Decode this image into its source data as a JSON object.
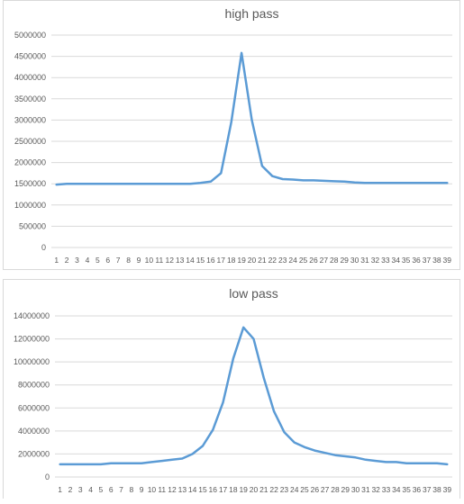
{
  "chart_data": [
    {
      "type": "line",
      "title": "high pass",
      "xlabel": "",
      "ylabel": "",
      "categories": [
        "1",
        "2",
        "3",
        "4",
        "5",
        "6",
        "7",
        "8",
        "9",
        "10",
        "11",
        "12",
        "13",
        "14",
        "15",
        "16",
        "17",
        "18",
        "19",
        "20",
        "21",
        "22",
        "23",
        "24",
        "25",
        "26",
        "27",
        "28",
        "29",
        "30",
        "31",
        "32",
        "33",
        "34",
        "35",
        "36",
        "37",
        "38",
        "39"
      ],
      "y_ticks": [
        "0",
        "500000",
        "1000000",
        "1500000",
        "2000000",
        "2500000",
        "3000000",
        "3500000",
        "4000000",
        "4500000",
        "5000000"
      ],
      "ylim": [
        0,
        5000000
      ],
      "grid": true,
      "legend": "none",
      "series": [
        {
          "values": [
            1480000,
            1500000,
            1500000,
            1500000,
            1500000,
            1500000,
            1500000,
            1500000,
            1500000,
            1500000,
            1500000,
            1500000,
            1500000,
            1500000,
            1520000,
            1550000,
            1750000,
            2950000,
            4580000,
            3000000,
            1920000,
            1680000,
            1610000,
            1600000,
            1580000,
            1580000,
            1570000,
            1560000,
            1550000,
            1530000,
            1520000,
            1520000,
            1520000,
            1520000,
            1520000,
            1520000,
            1520000,
            1520000,
            1520000
          ]
        }
      ],
      "colors": {
        "line": "#5b9bd5",
        "grid": "#d9d9d9",
        "text": "#595959"
      }
    },
    {
      "type": "line",
      "title": "low pass",
      "xlabel": "",
      "ylabel": "",
      "categories": [
        "1",
        "2",
        "3",
        "4",
        "5",
        "6",
        "7",
        "8",
        "9",
        "10",
        "11",
        "12",
        "13",
        "14",
        "15",
        "16",
        "17",
        "18",
        "19",
        "20",
        "21",
        "22",
        "23",
        "24",
        "25",
        "26",
        "27",
        "28",
        "29",
        "30",
        "31",
        "32",
        "33",
        "34",
        "35",
        "36",
        "37",
        "38",
        "39"
      ],
      "y_ticks": [
        "0",
        "2000000",
        "4000000",
        "6000000",
        "8000000",
        "10000000",
        "12000000",
        "14000000"
      ],
      "ylim": [
        0,
        14000000
      ],
      "grid": true,
      "legend": "none",
      "series": [
        {
          "values": [
            1100000,
            1100000,
            1100000,
            1100000,
            1100000,
            1200000,
            1200000,
            1200000,
            1200000,
            1300000,
            1400000,
            1500000,
            1600000,
            2000000,
            2700000,
            4100000,
            6500000,
            10300000,
            13000000,
            12000000,
            8600000,
            5700000,
            3900000,
            3000000,
            2600000,
            2300000,
            2100000,
            1900000,
            1800000,
            1700000,
            1500000,
            1400000,
            1300000,
            1300000,
            1200000,
            1200000,
            1200000,
            1200000,
            1100000
          ]
        }
      ],
      "colors": {
        "line": "#5b9bd5",
        "grid": "#d9d9d9",
        "text": "#595959"
      }
    }
  ]
}
